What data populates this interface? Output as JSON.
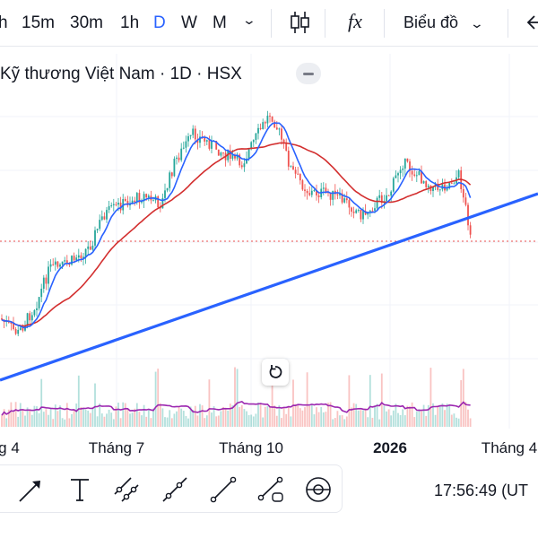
{
  "toolbar": {
    "timeframes": [
      {
        "label": "h",
        "active": false
      },
      {
        "label": "15m",
        "active": false
      },
      {
        "label": "30m",
        "active": false
      },
      {
        "label": "1h",
        "active": false
      },
      {
        "label": "D",
        "active": true
      },
      {
        "label": "W",
        "active": false
      },
      {
        "label": "M",
        "active": false
      }
    ],
    "timeframe_dropdown_icon": "chevron-down-icon",
    "candles_icon": "candlestick-icon",
    "indicators_label": "fx",
    "chart_type_label": "Biểu đồ",
    "undo_icon": "arrow-left-icon",
    "accent_color": "#2962ff"
  },
  "legend": {
    "title": "Kỹ thương Việt Nam · 1D · HSX"
  },
  "time_axis": {
    "ticks": [
      {
        "label": "g 4",
        "bold": false
      },
      {
        "label": "Tháng 7",
        "bold": false
      },
      {
        "label": "Tháng 10",
        "bold": false
      },
      {
        "label": "2026",
        "bold": true
      },
      {
        "label": "Tháng 4",
        "bold": false
      }
    ]
  },
  "drawing_tools": {
    "items": [
      "arrow-tool-icon",
      "text-tool-icon",
      "parallel-channel-icon",
      "ray-tool-icon",
      "trend-line-icon",
      "polyline-icon",
      "magnet-icon"
    ]
  },
  "status": {
    "clock": "17:56:49 (UT"
  },
  "colors": {
    "up": "#26a69a",
    "down": "#ef5350",
    "ma_fast": "#2962ff",
    "ma_slow": "#d32f2f",
    "volume_ma": "#9c27b0",
    "trendline": "#2962ff"
  }
}
